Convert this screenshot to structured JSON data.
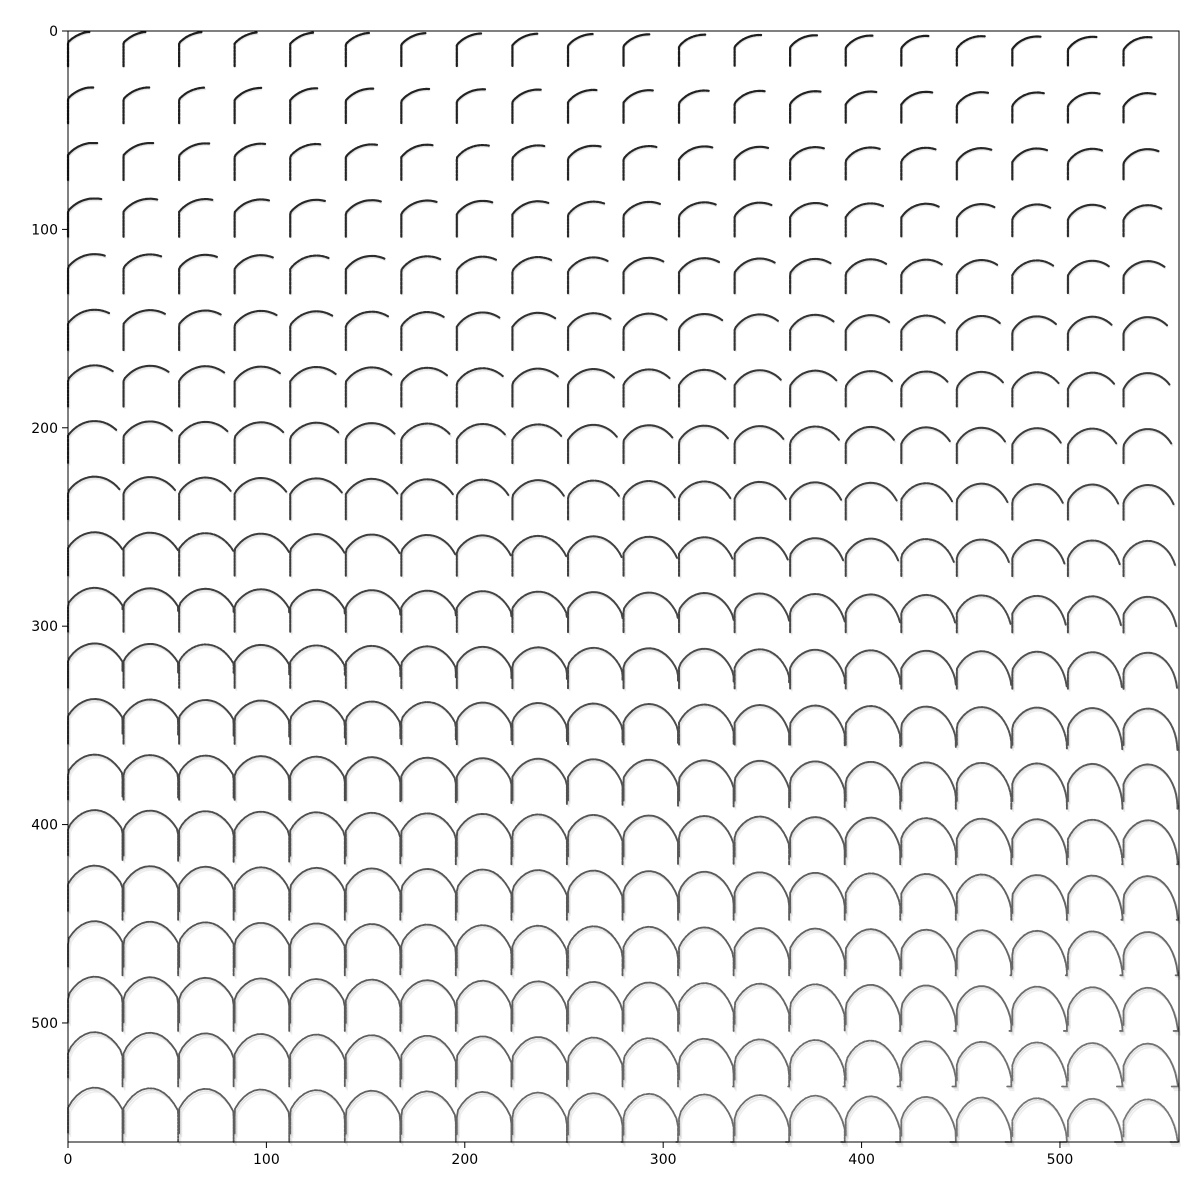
{
  "chart_data": {
    "type": "heatmap",
    "title": "",
    "xlabel": "",
    "ylabel": "",
    "xlim": [
      0,
      560
    ],
    "ylim": [
      560,
      0
    ],
    "x_ticks": [
      0,
      100,
      200,
      300,
      400,
      500
    ],
    "y_ticks": [
      0,
      100,
      200,
      300,
      400,
      500
    ],
    "x_tick_labels": [
      "0",
      "100",
      "200",
      "300",
      "400",
      "500"
    ],
    "y_tick_labels": [
      "0",
      "100",
      "200",
      "300",
      "400",
      "500"
    ],
    "grid": false,
    "colormap": "gray_r",
    "image_description_units": "pixel",
    "tiles": {
      "rows": 20,
      "cols": 20,
      "tile_size": 28
    }
  },
  "colors": {
    "background": "#ffffff",
    "axes": "#000000",
    "ink": "#1a1a1a"
  }
}
